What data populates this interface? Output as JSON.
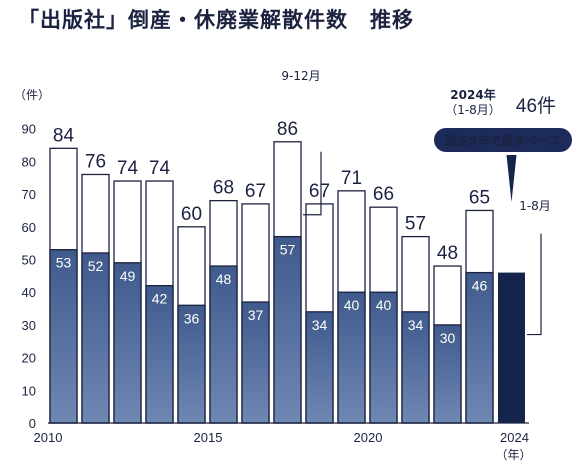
{
  "title": "「出版社」倒産・休廃業解散件数　推移",
  "chart_data": {
    "type": "bar",
    "title": "「出版社」倒産・休廃業解散件数　推移",
    "ylabel": "（件）",
    "xlabel": "（年）",
    "ylim": [
      0,
      90
    ],
    "yticks": [
      0,
      10,
      20,
      30,
      40,
      50,
      60,
      70,
      80,
      90
    ],
    "categories": [
      "2010",
      "2011",
      "2012",
      "2013",
      "2014",
      "2015",
      "2016",
      "2017",
      "2018",
      "2019",
      "2020",
      "2021",
      "2022",
      "2023",
      "2024"
    ],
    "x_tick_labels": [
      "2010",
      "2015",
      "2020",
      "2024"
    ],
    "series": [
      {
        "name": "",
        "values": [
          53,
          52,
          49,
          42,
          36,
          48,
          37,
          57,
          34,
          40,
          40,
          34,
          30,
          46,
          46
        ]
      },
      {
        "name": "",
        "values": [
          84,
          76,
          74,
          74,
          60,
          68,
          67,
          86,
          67,
          71,
          66,
          57,
          48,
          65,
          46
        ]
      }
    ],
    "total_labels": [
      "84",
      "76",
      "74",
      "74",
      "60",
      "68",
      "67",
      "86",
      "67",
      "71",
      "66",
      "57",
      "48",
      "65"
    ],
    "inner_labels": [
      "53",
      "52",
      "49",
      "42",
      "36",
      "48",
      "37",
      "57",
      "34",
      "40",
      "40",
      "34",
      "30",
      "46"
    ],
    "annotations": {
      "period_2017": "9-12月",
      "period_2024": "1-8月",
      "highlight_year": "2024年",
      "highlight_period": "（1-8月）",
      "highlight_value": "46件",
      "badge": "過去5年で最多ペース"
    },
    "colors": {
      "bar_fill": "#4a6494",
      "bar_fill_light": "#6a82b0",
      "bar_2024": "#15244a",
      "outline": "#1c2340",
      "badge_bg": "#1c2b5a",
      "badge_text": "#ffffff"
    },
    "grid": false
  }
}
